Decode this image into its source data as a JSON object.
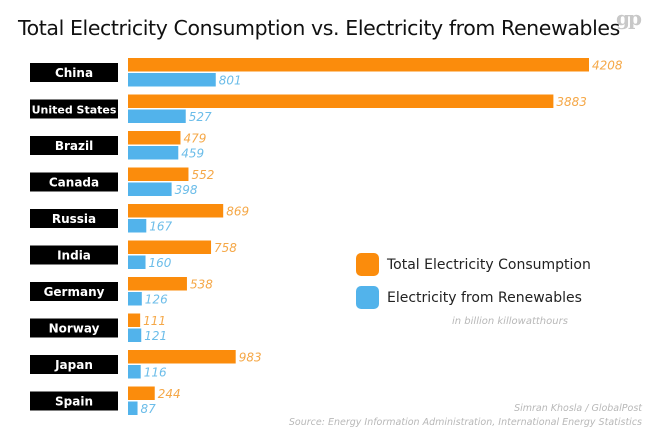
{
  "chart_data": {
    "type": "bar",
    "orientation": "horizontal",
    "title": "Total Electricity Consumption vs. Electricity from Renewables",
    "categories": [
      "China",
      "United States",
      "Brazil",
      "Canada",
      "Russia",
      "India",
      "Germany",
      "Norway",
      "Japan",
      "Spain"
    ],
    "series": [
      {
        "name": "Total Electricity Consumption",
        "color": "#fb8c0c",
        "label_color": "#f5a848",
        "values": [
          4208,
          3883,
          479,
          552,
          869,
          758,
          538,
          111,
          983,
          244
        ]
      },
      {
        "name": "Electricity from Renewables",
        "color": "#52b3eb",
        "label_color": "#6cbde9",
        "values": [
          801,
          527,
          459,
          398,
          167,
          160,
          126,
          121,
          116,
          87
        ]
      }
    ],
    "unit_note": "in billion killowatthours",
    "xlim": [
      0,
      4208
    ],
    "grid": false,
    "legend_position": "right"
  },
  "logo": "gp",
  "credit": "Simran Khosla / GlobalPost",
  "source": "Source: Energy Information Administration, International Energy Statistics"
}
